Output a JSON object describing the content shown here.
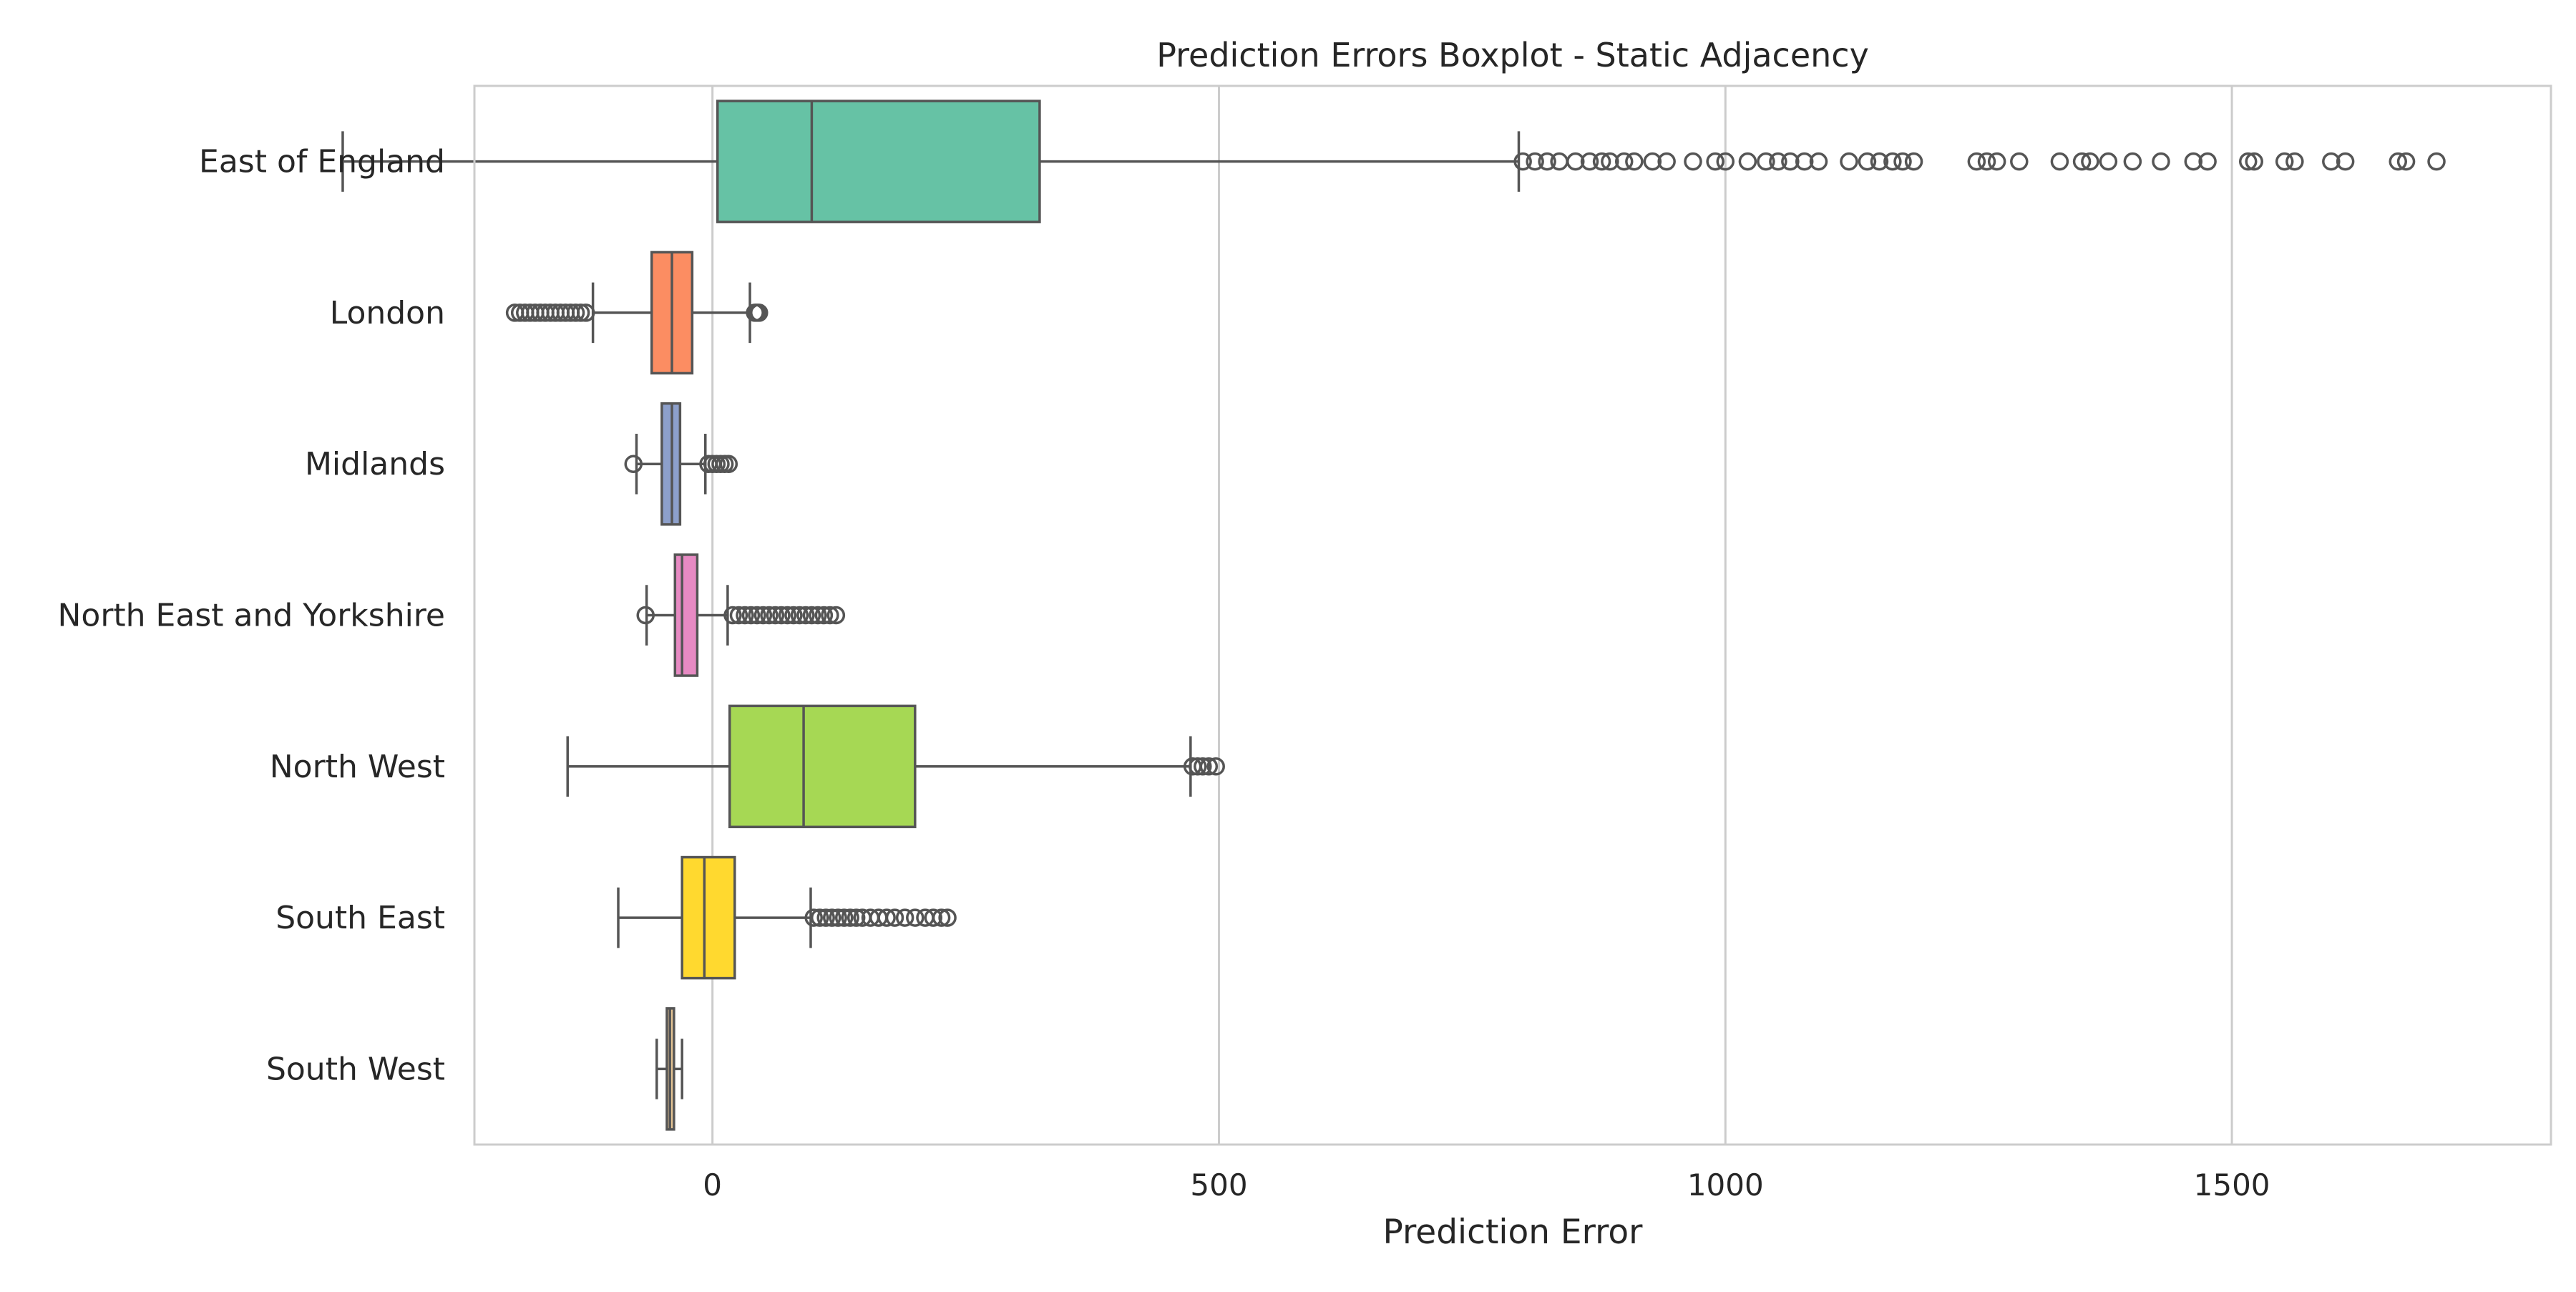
{
  "chart_data": {
    "type": "boxplot",
    "orientation": "horizontal",
    "title": "Prediction Errors Boxplot - Static Adjacency",
    "xlabel": "Prediction Error",
    "ylabel": "",
    "xlim": [
      -235,
      1815
    ],
    "xticks": [
      0,
      500,
      1000,
      1500
    ],
    "grid": "vertical",
    "categories": [
      "East of England",
      "London",
      "Midlands",
      "North East and Yorkshire",
      "North West",
      "South East",
      "South West"
    ],
    "colors": [
      "#66c2a5",
      "#fc8d62",
      "#8da0cb",
      "#e78ac3",
      "#a6d854",
      "#ffd92f",
      "#e5c494"
    ],
    "boxes": [
      {
        "category": "East of England",
        "whisker_low": -365,
        "q1": 5,
        "median": 98,
        "q3": 323,
        "whisker_high": 796,
        "outliers": [
          800,
          812,
          824,
          836,
          852,
          866,
          878,
          886,
          900,
          910,
          928,
          942,
          968,
          990,
          1000,
          1022,
          1040,
          1052,
          1064,
          1078,
          1092,
          1122,
          1140,
          1152,
          1165,
          1175,
          1186,
          1248,
          1258,
          1268,
          1290,
          1330,
          1352,
          1360,
          1378,
          1402,
          1430,
          1462,
          1476,
          1516,
          1522,
          1552,
          1562,
          1598,
          1612,
          1664,
          1672,
          1702
        ]
      },
      {
        "category": "London",
        "whisker_low": -118,
        "q1": -60,
        "median": -40,
        "q3": -20,
        "whisker_high": 37,
        "outliers": [
          -195,
          -190,
          -185,
          -180,
          -175,
          -170,
          -165,
          -160,
          -155,
          -150,
          -145,
          -140,
          -135,
          -130,
          -125,
          42,
          44,
          46
        ]
      },
      {
        "category": "Midlands",
        "whisker_low": -75,
        "q1": -50,
        "median": -40,
        "q3": -32,
        "whisker_high": -7,
        "outliers": [
          -78,
          -4,
          0,
          4,
          8,
          12,
          16
        ]
      },
      {
        "category": "North East and Yorkshire",
        "whisker_low": -65,
        "q1": -37,
        "median": -30,
        "q3": -15,
        "whisker_high": 15,
        "outliers": [
          -66,
          20,
          26,
          32,
          38,
          44,
          50,
          56,
          62,
          68,
          74,
          80,
          86,
          92,
          98,
          104,
          110,
          116,
          122
        ]
      },
      {
        "category": "North West",
        "whisker_low": -143,
        "q1": 17,
        "median": 90,
        "q3": 200,
        "whisker_high": 472,
        "outliers": [
          474,
          479,
          484,
          490,
          497
        ]
      },
      {
        "category": "South East",
        "whisker_low": -93,
        "q1": -30,
        "median": -8,
        "q3": 22,
        "whisker_high": 97,
        "outliers": [
          100,
          106,
          112,
          118,
          124,
          130,
          136,
          142,
          148,
          156,
          164,
          172,
          180,
          190,
          200,
          210,
          218,
          226,
          232
        ]
      },
      {
        "category": "South West",
        "whisker_low": -55,
        "q1": -45,
        "median": -42,
        "q3": -38,
        "whisker_high": -30,
        "outliers": []
      }
    ]
  }
}
